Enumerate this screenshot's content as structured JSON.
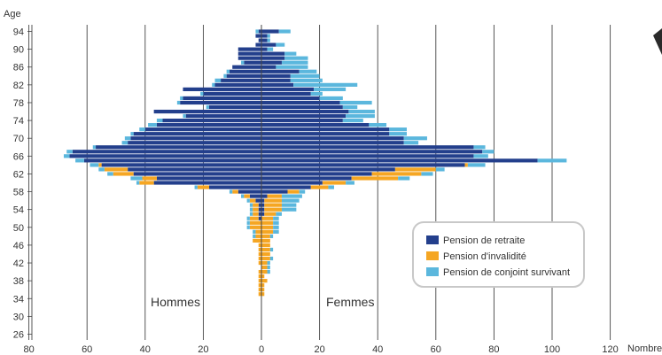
{
  "chart_data": {
    "type": "bar",
    "orientation": "horizontal",
    "subtype": "population-pyramid-stacked",
    "ylabel": "Age",
    "xlabel": "Nombre",
    "xlim": [
      -80,
      120
    ],
    "x_ticks": [
      "80",
      "60",
      "40",
      "20",
      "0",
      "20",
      "40",
      "60",
      "80",
      "100",
      "120"
    ],
    "y_ticks": [
      "26",
      "30",
      "34",
      "38",
      "42",
      "46",
      "50",
      "54",
      "58",
      "62",
      "66",
      "70",
      "74",
      "78",
      "82",
      "86",
      "90",
      "94"
    ],
    "group_left": "Hommes",
    "group_right": "Femmes",
    "ages": [
      94,
      93,
      92,
      91,
      90,
      89,
      88,
      87,
      86,
      85,
      84,
      83,
      82,
      81,
      80,
      79,
      78,
      77,
      76,
      75,
      74,
      73,
      72,
      71,
      70,
      69,
      68,
      67,
      66,
      65,
      64,
      63,
      62,
      61,
      60,
      59,
      58,
      57,
      56,
      55,
      54,
      53,
      52,
      51,
      50,
      49,
      48,
      47,
      46,
      45,
      44,
      43,
      42,
      41,
      40,
      39,
      38,
      37,
      36,
      35,
      34,
      33,
      32,
      31,
      30,
      29,
      28,
      27,
      26
    ],
    "series": [
      {
        "name": "Pension de retraite",
        "color": "#233f8c",
        "hommes": [
          1,
          2,
          1,
          2,
          8,
          8,
          8,
          6,
          10,
          11,
          12,
          14,
          16,
          27,
          20,
          27,
          28,
          18,
          37,
          26,
          34,
          36,
          40,
          44,
          45,
          46,
          57,
          65,
          66,
          61,
          55,
          46,
          44,
          36,
          37,
          18,
          8,
          4,
          2,
          1,
          1,
          1,
          1,
          0,
          0,
          0,
          0,
          0,
          0,
          0,
          0,
          0,
          0,
          0,
          0,
          0,
          0,
          0,
          0,
          0,
          0,
          0,
          0,
          0,
          0,
          0,
          0,
          0,
          0
        ],
        "femmes": [
          6,
          2,
          2,
          5,
          2,
          8,
          8,
          7,
          5,
          13,
          10,
          10,
          11,
          18,
          17,
          20,
          27,
          28,
          30,
          29,
          28,
          37,
          44,
          44,
          49,
          49,
          73,
          76,
          73,
          95,
          70,
          46,
          38,
          31,
          21,
          17,
          9,
          2,
          1,
          1,
          1,
          1,
          0,
          0,
          0,
          0,
          0,
          0,
          0,
          0,
          0,
          0,
          0,
          0,
          0,
          0,
          0,
          0,
          0,
          0,
          0,
          0,
          0,
          0,
          0,
          0,
          0,
          0,
          0
        ]
      },
      {
        "name": "Pension d'invalidité",
        "color": "#f5a623",
        "hommes": [
          0,
          0,
          0,
          0,
          0,
          0,
          0,
          0,
          0,
          0,
          0,
          0,
          0,
          0,
          0,
          0,
          0,
          0,
          0,
          0,
          0,
          0,
          0,
          0,
          0,
          0,
          0,
          0,
          0,
          0,
          1,
          8,
          7,
          5,
          5,
          4,
          2,
          2,
          2,
          2,
          2,
          2,
          3,
          4,
          4,
          2,
          2,
          3,
          1,
          1,
          1,
          1,
          1,
          0,
          1,
          1,
          1,
          1,
          1,
          1,
          0,
          0,
          0,
          0,
          0,
          0,
          0,
          0,
          0
        ],
        "femmes": [
          0,
          0,
          0,
          0,
          0,
          0,
          0,
          0,
          0,
          0,
          0,
          0,
          0,
          0,
          0,
          0,
          0,
          0,
          0,
          0,
          0,
          0,
          0,
          0,
          0,
          0,
          0,
          0,
          0,
          0,
          1,
          14,
          17,
          16,
          8,
          6,
          4,
          5,
          6,
          6,
          6,
          4,
          4,
          4,
          4,
          4,
          3,
          3,
          3,
          3,
          3,
          3,
          2,
          2,
          2,
          1,
          2,
          1,
          1,
          1,
          0,
          0,
          0,
          0,
          0,
          0,
          0,
          0,
          0
        ]
      },
      {
        "name": "Pension de conjoint survivant",
        "color": "#5bb7dd",
        "hommes": [
          1,
          0,
          0,
          0,
          0,
          0,
          0,
          1,
          0,
          1,
          1,
          2,
          1,
          0,
          1,
          1,
          1,
          1,
          0,
          1,
          2,
          3,
          2,
          1,
          2,
          2,
          1,
          2,
          2,
          3,
          3,
          2,
          2,
          4,
          1,
          1,
          1,
          1,
          1,
          1,
          1,
          1,
          1,
          1,
          1,
          1,
          1,
          0,
          0,
          0,
          0,
          0,
          0,
          0,
          0,
          0,
          0,
          0,
          0,
          0,
          0,
          0,
          0,
          0,
          0,
          0,
          0,
          0,
          0
        ],
        "femmes": [
          4,
          1,
          1,
          3,
          2,
          4,
          8,
          9,
          11,
          6,
          10,
          11,
          22,
          11,
          4,
          8,
          11,
          5,
          9,
          10,
          7,
          6,
          6,
          6,
          8,
          5,
          4,
          4,
          5,
          10,
          6,
          3,
          4,
          4,
          3,
          2,
          2,
          7,
          6,
          5,
          5,
          2,
          2,
          2,
          2,
          2,
          1,
          0,
          0,
          1,
          0,
          1,
          1,
          1,
          1,
          0,
          0,
          0,
          0,
          0,
          0,
          0,
          0,
          0,
          0,
          0,
          0,
          0,
          0
        ]
      }
    ],
    "legend_position": "right"
  }
}
